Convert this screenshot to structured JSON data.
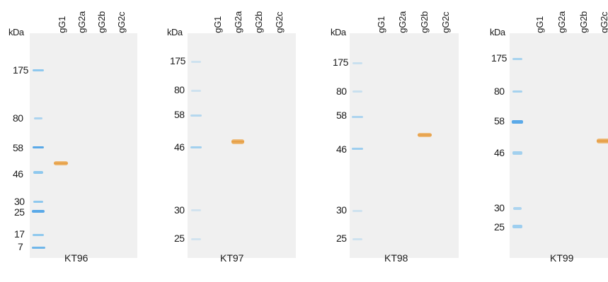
{
  "unit_label": "kDa",
  "lane_headers": [
    "IgG1",
    "IgG2a",
    "IgG2b",
    "IgG2c"
  ],
  "panels": [
    {
      "caption": "KT96",
      "markers": [
        "175",
        "80",
        "58",
        "46",
        "30",
        "25",
        "17",
        "7"
      ],
      "positive_lane": "IgG1"
    },
    {
      "caption": "KT97",
      "markers": [
        "175",
        "80",
        "58",
        "46",
        "30",
        "25"
      ],
      "positive_lane": "IgG2a"
    },
    {
      "caption": "KT98",
      "markers": [
        "175",
        "80",
        "58",
        "46",
        "30",
        "25"
      ],
      "positive_lane": "IgG2b"
    },
    {
      "caption": "KT99",
      "markers": [
        "175",
        "80",
        "58",
        "46",
        "30",
        "25"
      ],
      "positive_lane": "IgG2c"
    }
  ],
  "colors": {
    "membrane": "#f0f0f0",
    "ladder": "#8ec8ee",
    "band": "#e59a3c"
  }
}
